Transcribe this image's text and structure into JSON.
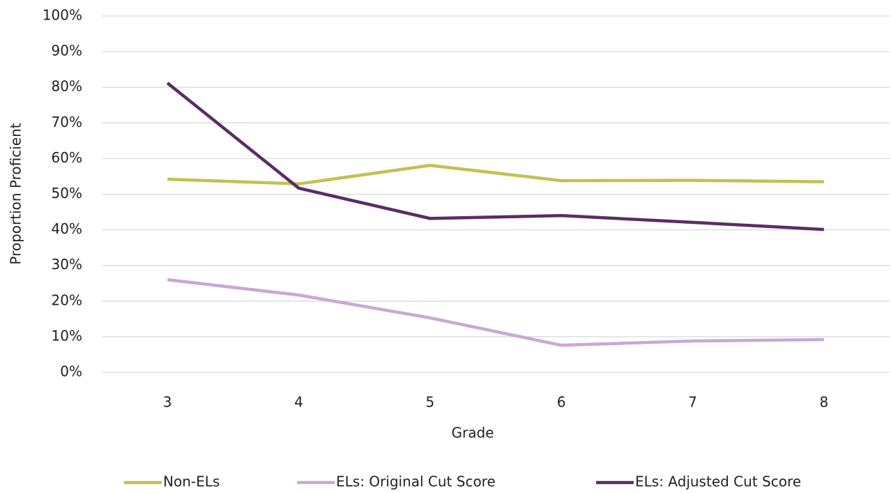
{
  "chart_data": {
    "type": "line",
    "x_label": "Grade",
    "y_label": "Proportion Proficient",
    "categories": [
      "3",
      "4",
      "5",
      "6",
      "7",
      "8"
    ],
    "series": [
      {
        "name": "Non-ELs",
        "color": "#c3c055",
        "values": [
          54.2,
          52.9,
          58.1,
          53.8,
          53.9,
          53.5
        ]
      },
      {
        "name": "ELs: Original Cut Score",
        "color": "#c8a8d6",
        "values": [
          26.0,
          21.7,
          15.3,
          7.6,
          8.8,
          9.2
        ]
      },
      {
        "name": "ELs: Adjusted Cut Score",
        "color": "#5b2d63",
        "values": [
          81.2,
          51.7,
          43.2,
          44.0,
          42.1,
          40.1
        ]
      }
    ],
    "ylim": [
      0,
      100
    ],
    "yticks": [
      {
        "value": 0,
        "label": "0%"
      },
      {
        "value": 10,
        "label": "10%"
      },
      {
        "value": 20,
        "label": "20%"
      },
      {
        "value": 30,
        "label": "30%"
      },
      {
        "value": 40,
        "label": "40%"
      },
      {
        "value": 50,
        "label": "50%"
      },
      {
        "value": 60,
        "label": "60%"
      },
      {
        "value": 70,
        "label": "70%"
      },
      {
        "value": 80,
        "label": "80%"
      },
      {
        "value": 90,
        "label": "90%"
      },
      {
        "value": 100,
        "label": "100%"
      }
    ],
    "grid": true,
    "legend": "bottom"
  }
}
